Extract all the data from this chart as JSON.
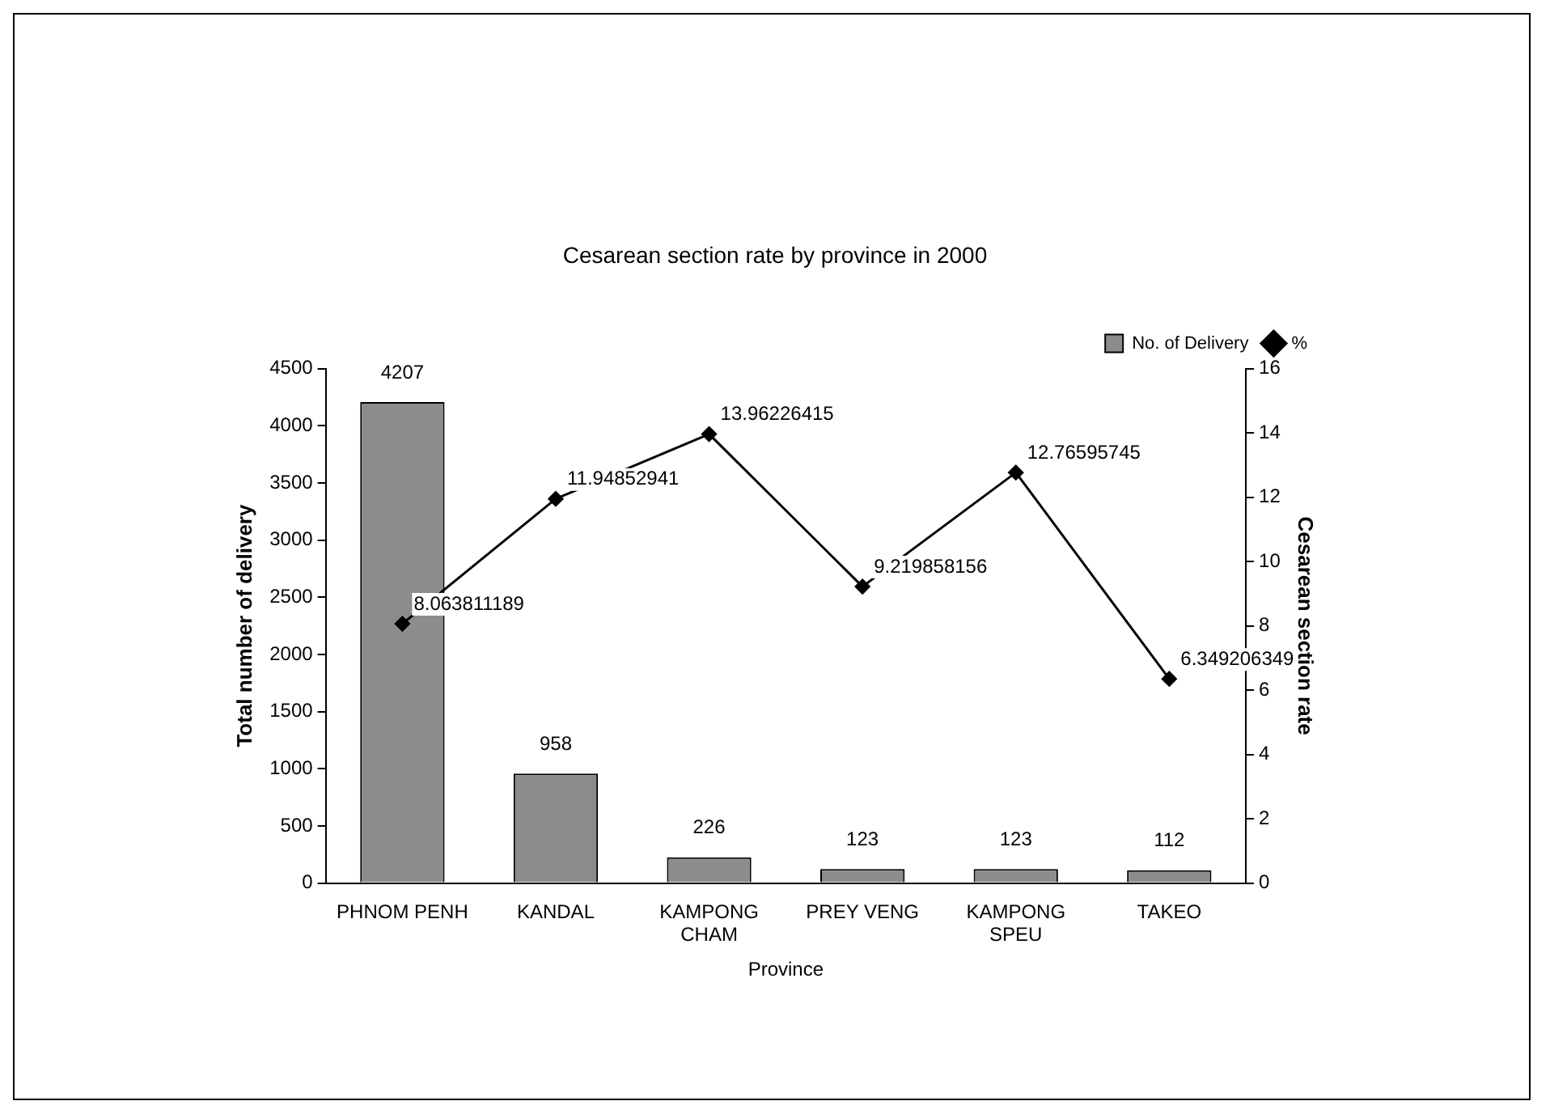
{
  "chart_data": {
    "type": "bar",
    "title": "Cesarean section rate by province in 2000",
    "xlabel": "Province",
    "ylabel": "Total number of delivery",
    "y2label": "Cesarean section rate",
    "categories": [
      "PHNOM PENH",
      "KANDAL",
      "KAMPONG CHAM",
      "PREY VENG",
      "KAMPONG SPEU",
      "TAKEO"
    ],
    "series": [
      {
        "name": "No. of Delivery",
        "color": "#8c8c8c",
        "values": [
          4207,
          958,
          226,
          123,
          123,
          112
        ]
      },
      {
        "name": "%",
        "type": "line",
        "axis": "y2",
        "color": "#000000",
        "marker": "diamond",
        "values": [
          8.063811189,
          11.94852941,
          13.96226415,
          9.219858156,
          12.76595745,
          6.349206349
        ]
      }
    ],
    "ylim": [
      0,
      4500
    ],
    "yticks": [
      0,
      500,
      1000,
      1500,
      2000,
      2500,
      3000,
      3500,
      4000,
      4500
    ],
    "y2lim": [
      0,
      16
    ],
    "y2ticks": [
      0,
      2,
      4,
      6,
      8,
      10,
      12,
      14,
      16
    ],
    "data_labels": true,
    "legend": "top right",
    "grid": false
  }
}
